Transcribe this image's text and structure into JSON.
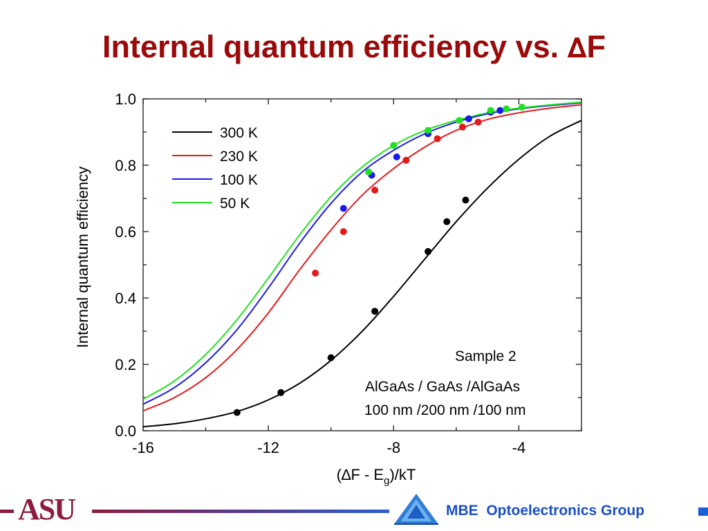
{
  "slide": {
    "title_prefix": "Internal quantum efficiency vs. ",
    "title_delta": "∆",
    "title_suffix": "F"
  },
  "footer": {
    "logo_text": "ASU",
    "group_text": "MBE  Optoelectronics Group",
    "colors": {
      "maroon": "#8c1d40",
      "blue": "#1a5fd6"
    }
  },
  "chart_data": {
    "type": "line",
    "title": "",
    "xlabel_parts": [
      "(∆F - E",
      "g",
      ")/kT"
    ],
    "ylabel": "Internal quantum efficiency",
    "xlim": [
      -16,
      -2
    ],
    "ylim": [
      0.0,
      1.0
    ],
    "xticks": [
      -16,
      -12,
      -8,
      -4
    ],
    "xtick_labels": [
      "-16",
      "-12",
      "-8",
      "-4"
    ],
    "yticks": [
      0.0,
      0.2,
      0.4,
      0.6,
      0.8,
      1.0
    ],
    "ytick_labels": [
      "0.0",
      "0.2",
      "0.4",
      "0.6",
      "0.8",
      "1.0"
    ],
    "grid": false,
    "legend_position": "top-left",
    "annotations": [
      "Sample 2",
      "AlGaAs / GaAs /AlGaAs",
      "100 nm /200 nm /100 nm"
    ],
    "series": [
      {
        "name": "300 K",
        "color": "#000000",
        "curve": {
          "x": [
            -16,
            -15,
            -14,
            -13,
            -12,
            -11,
            -10,
            -9,
            -8,
            -7,
            -6,
            -5,
            -4,
            -3,
            -2
          ],
          "y": [
            0.012,
            0.021,
            0.036,
            0.058,
            0.093,
            0.143,
            0.212,
            0.3,
            0.405,
            0.518,
            0.63,
            0.731,
            0.818,
            0.888,
            0.935
          ]
        },
        "points": {
          "x": [
            -13.0,
            -11.6,
            -10.0,
            -8.6,
            -6.9,
            -6.3,
            -5.7
          ],
          "y": [
            0.055,
            0.115,
            0.22,
            0.36,
            0.54,
            0.63,
            0.695
          ]
        }
      },
      {
        "name": "230 K",
        "color": "#e31a1a",
        "curve": {
          "x": [
            -16,
            -15,
            -14,
            -13,
            -12,
            -11,
            -10,
            -9,
            -8,
            -7,
            -6,
            -5,
            -4,
            -3,
            -2
          ],
          "y": [
            0.06,
            0.1,
            0.16,
            0.245,
            0.355,
            0.485,
            0.605,
            0.71,
            0.79,
            0.855,
            0.905,
            0.938,
            0.958,
            0.972,
            0.982
          ]
        },
        "points": {
          "x": [
            -10.5,
            -9.6,
            -8.6,
            -7.6,
            -6.6,
            -5.8,
            -5.3
          ],
          "y": [
            0.475,
            0.6,
            0.725,
            0.815,
            0.88,
            0.915,
            0.93
          ]
        }
      },
      {
        "name": "100 K",
        "color": "#1a1ae8",
        "curve": {
          "x": [
            -16,
            -15,
            -14,
            -13,
            -12,
            -11,
            -10,
            -9,
            -8,
            -7,
            -6,
            -5,
            -4,
            -3,
            -2
          ],
          "y": [
            0.08,
            0.13,
            0.205,
            0.305,
            0.43,
            0.565,
            0.685,
            0.78,
            0.845,
            0.895,
            0.93,
            0.955,
            0.97,
            0.98,
            0.988
          ]
        },
        "points": {
          "x": [
            -9.6,
            -8.7,
            -7.9,
            -6.9,
            -5.6,
            -4.9,
            -4.6
          ],
          "y": [
            0.67,
            0.77,
            0.825,
            0.895,
            0.94,
            0.96,
            0.965
          ]
        }
      },
      {
        "name": "50 K",
        "color": "#22e022",
        "curve": {
          "x": [
            -16,
            -15,
            -14,
            -13,
            -12,
            -11,
            -10,
            -9,
            -8,
            -7,
            -6,
            -5,
            -4,
            -3,
            -2
          ],
          "y": [
            0.095,
            0.15,
            0.23,
            0.335,
            0.46,
            0.59,
            0.705,
            0.795,
            0.86,
            0.905,
            0.935,
            0.958,
            0.972,
            0.982,
            0.99
          ]
        },
        "points": {
          "x": [
            -8.8,
            -8.0,
            -6.9,
            -5.9,
            -4.9,
            -4.4,
            -3.9
          ],
          "y": [
            0.78,
            0.86,
            0.905,
            0.935,
            0.965,
            0.97,
            0.975
          ]
        }
      }
    ]
  }
}
